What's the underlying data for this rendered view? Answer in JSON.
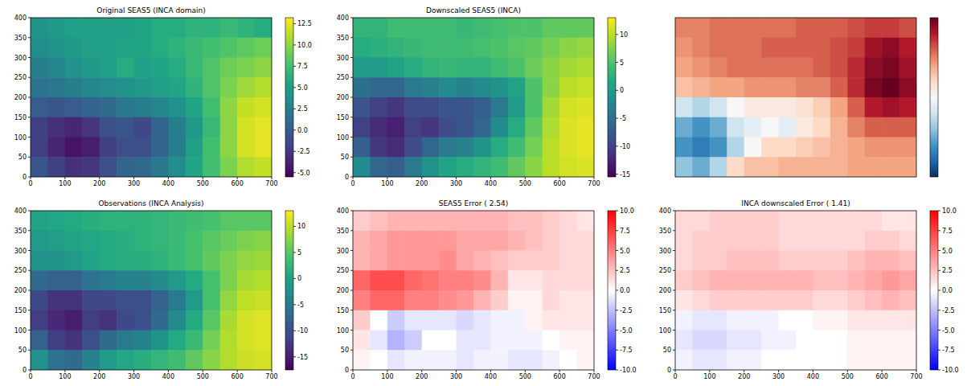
{
  "chart_data": [
    {
      "type": "heatmap",
      "title": "Original SEAS5 (INCA domain)",
      "color": "viridis",
      "x": [
        25,
        75,
        125,
        175,
        225,
        275,
        325,
        375,
        425,
        475,
        525,
        575,
        625,
        675
      ],
      "y": [
        375,
        325,
        275,
        225,
        175,
        125,
        75,
        25
      ],
      "values": [
        [
          4,
          4.5,
          5,
          5,
          5,
          5,
          5.5,
          6,
          6,
          6.5,
          6.5,
          7,
          6.5,
          6
        ],
        [
          3.5,
          4,
          4.5,
          5,
          5,
          5.5,
          5.5,
          6,
          6.5,
          7,
          7.5,
          8,
          8.5,
          9
        ],
        [
          2.5,
          3,
          4,
          4.5,
          5,
          6,
          5,
          5.5,
          6,
          7,
          8,
          9,
          9.5,
          10
        ],
        [
          1.5,
          2,
          2.5,
          3,
          3.5,
          4,
          4.5,
          5,
          5.5,
          6.5,
          8,
          9.5,
          10.5,
          11
        ],
        [
          0,
          -0.5,
          0,
          0.5,
          1,
          2,
          2.5,
          3,
          4,
          5.5,
          7.5,
          10,
          11.5,
          12
        ],
        [
          -2,
          -3,
          -3.5,
          -2.5,
          -1,
          -0.5,
          -1.5,
          0.5,
          2.5,
          4.5,
          7,
          10,
          12,
          12.5
        ],
        [
          -2,
          -3.5,
          -4.5,
          -4,
          -2,
          -1,
          -1,
          0.5,
          2.5,
          5,
          7.5,
          10,
          12,
          12.5
        ],
        [
          -0.5,
          -2,
          -3,
          -2.5,
          -1,
          0.5,
          1,
          2,
          3.5,
          5.5,
          7.5,
          9.5,
          11,
          11.5
        ]
      ],
      "xlim": [
        0,
        700
      ],
      "ylim": [
        0,
        400
      ],
      "xticks": [
        0,
        100,
        200,
        300,
        400,
        500,
        600,
        700
      ],
      "yticks": [
        0,
        50,
        100,
        150,
        200,
        250,
        300,
        350,
        400
      ],
      "colorbar": {
        "range": [
          -5.5,
          13.2
        ],
        "ticks": [
          {
            "value": -5,
            "label": "-5.0"
          },
          -2.5,
          {
            "value": 0,
            "label": "0.0"
          },
          2.5,
          {
            "value": 5,
            "label": "5.0"
          },
          7.5,
          {
            "value": 10,
            "label": "10.0"
          },
          12.5
        ]
      }
    },
    {
      "type": "heatmap",
      "title": "Downscaled SEAS5 (INCA)",
      "color": "viridis",
      "x": [
        25,
        75,
        125,
        175,
        225,
        275,
        325,
        375,
        425,
        475,
        525,
        575,
        625,
        675
      ],
      "y": [
        375,
        325,
        275,
        225,
        175,
        125,
        75,
        25
      ],
      "values": [
        [
          3,
          3,
          4,
          4,
          4,
          4,
          3.5,
          4,
          4.5,
          5,
          5,
          6,
          6,
          6
        ],
        [
          2,
          2.5,
          3,
          3.5,
          4,
          4,
          4,
          4.5,
          5,
          5.5,
          6,
          7,
          8,
          8.5
        ],
        [
          0,
          0,
          1,
          2,
          3,
          3.5,
          3,
          3,
          4,
          5,
          6.5,
          8,
          9,
          9.5
        ],
        [
          -5,
          -6,
          -6,
          -4,
          -3,
          -2,
          -3,
          -2,
          -1,
          1,
          5,
          8,
          10,
          10.5
        ],
        [
          -8,
          -10,
          -11,
          -9,
          -9,
          -8,
          -8,
          -7,
          -4,
          0,
          5,
          9,
          11,
          11.5
        ],
        [
          -10,
          -12,
          -13,
          -10,
          -11,
          -9,
          -8,
          -6,
          -2,
          2,
          6,
          9.5,
          11.5,
          12
        ],
        [
          -7,
          -11,
          -12,
          -9,
          -6,
          -4,
          -3,
          -1,
          2,
          4,
          7,
          10,
          11.5,
          12
        ],
        [
          -2,
          -6,
          -7,
          -4,
          -1,
          1,
          2,
          3,
          4,
          6,
          8,
          10,
          11,
          11.5
        ]
      ],
      "xlim": [
        0,
        700
      ],
      "ylim": [
        0,
        400
      ],
      "xticks": [
        0,
        100,
        200,
        300,
        400,
        500,
        600,
        700
      ],
      "yticks": [
        0,
        50,
        100,
        150,
        200,
        250,
        300,
        350,
        400
      ],
      "colorbar": {
        "range": [
          -15.5,
          13
        ],
        "ticks": [
          -15,
          -10,
          -5,
          0,
          5,
          10
        ]
      }
    },
    {
      "type": "heatmap",
      "color": "RdBu_r",
      "tick_labels": false,
      "x": [
        25,
        75,
        125,
        175,
        225,
        275,
        325,
        375,
        425,
        475,
        525,
        575,
        625,
        675
      ],
      "y": [
        375,
        325,
        275,
        225,
        175,
        125,
        75,
        25
      ],
      "values": [
        [
          5,
          5,
          5.5,
          5.5,
          5.5,
          5.5,
          5.5,
          6,
          6,
          6,
          6.5,
          7,
          7,
          6.5
        ],
        [
          4.5,
          5,
          5.5,
          5.5,
          5.5,
          6,
          6,
          6,
          6,
          6.5,
          7,
          8.5,
          9,
          8
        ],
        [
          4,
          4.5,
          5,
          5.5,
          5.5,
          5.5,
          5.5,
          5.5,
          6,
          6.5,
          7.5,
          9,
          9.5,
          8.5
        ],
        [
          3,
          3.5,
          4,
          4,
          4.5,
          4.5,
          4.5,
          5,
          5,
          6,
          7.5,
          9.5,
          10,
          9
        ],
        [
          -2,
          -3,
          -2,
          0,
          1,
          1,
          1,
          1.5,
          2.5,
          4,
          6,
          8,
          8.5,
          8
        ],
        [
          -5,
          -6,
          -5,
          -2,
          -1,
          0,
          -1,
          1,
          2,
          3.5,
          5,
          6,
          6,
          6
        ],
        [
          -6,
          -7,
          -6,
          -3,
          0,
          2,
          2,
          2.5,
          3,
          3.5,
          4,
          4.5,
          4.5,
          4.5
        ],
        [
          -4,
          -5,
          -3,
          2,
          3,
          3,
          3.5,
          3.5,
          3.5,
          3.5,
          4,
          4,
          4,
          4
        ]
      ],
      "xlim": [
        0,
        700
      ],
      "ylim": [
        0,
        400
      ],
      "colorbar": {
        "range": [
          -10,
          10
        ]
      }
    },
    {
      "type": "heatmap",
      "title": "Observations (INCA Analysis)",
      "color": "viridis",
      "x": [
        25,
        75,
        125,
        175,
        225,
        275,
        325,
        375,
        425,
        475,
        525,
        575,
        625,
        675
      ],
      "y": [
        375,
        325,
        275,
        225,
        175,
        125,
        75,
        25
      ],
      "values": [
        [
          0,
          0.5,
          1,
          1.5,
          2,
          2,
          2,
          2.5,
          3,
          3.5,
          4,
          5,
          5,
          5
        ],
        [
          -1,
          -0.5,
          0,
          0.5,
          1,
          1.5,
          2,
          2.5,
          3,
          4,
          5,
          6,
          7,
          7.5
        ],
        [
          -2,
          -2,
          -1,
          0,
          1,
          1.5,
          1.5,
          2,
          3,
          4,
          5.5,
          7,
          8,
          8.5
        ],
        [
          -7,
          -8,
          -8,
          -6,
          -5,
          -4,
          -4,
          -3,
          -1,
          1,
          4,
          7,
          9,
          9.5
        ],
        [
          -11,
          -13,
          -13,
          -11,
          -11,
          -10,
          -10,
          -8,
          -5,
          -1,
          4,
          8,
          10,
          10.5
        ],
        [
          -12,
          -14,
          -15,
          -12,
          -13,
          -11,
          -10,
          -7,
          -3,
          1,
          5,
          9,
          11,
          11.5
        ],
        [
          -8,
          -12,
          -13,
          -10,
          -7,
          -5,
          -4,
          -2,
          1,
          3,
          6.5,
          9.5,
          11,
          11.5
        ],
        [
          -2,
          -6,
          -7,
          -4,
          -1,
          0.5,
          1.5,
          2.5,
          3.5,
          5.5,
          7.5,
          9.5,
          10.5,
          11
        ]
      ],
      "xlim": [
        0,
        700
      ],
      "ylim": [
        0,
        400
      ],
      "xticks": [
        0,
        100,
        200,
        300,
        400,
        500,
        600,
        700
      ],
      "yticks": [
        0,
        50,
        100,
        150,
        200,
        250,
        300,
        350,
        400
      ],
      "colorbar": {
        "range": [
          -17.5,
          13
        ],
        "ticks": [
          -15,
          -10,
          -5,
          0,
          5,
          10
        ]
      }
    },
    {
      "type": "heatmap",
      "title": "SEAS5 Error ( 2.54)",
      "color": "bwr",
      "x": [
        25,
        75,
        125,
        175,
        225,
        275,
        325,
        375,
        425,
        475,
        525,
        575,
        625,
        675
      ],
      "y": [
        375,
        325,
        275,
        225,
        175,
        125,
        75,
        25
      ],
      "values": [
        [
          2,
          2.5,
          3,
          3,
          3,
          3,
          3,
          3,
          3,
          2.5,
          2.5,
          2,
          1.5,
          1
        ],
        [
          3,
          3.5,
          4,
          4,
          4,
          4,
          3.5,
          3.5,
          3.5,
          3,
          2.5,
          2,
          1.5,
          1.5
        ],
        [
          3,
          3.5,
          4,
          4,
          4,
          4.5,
          3.5,
          3,
          2.5,
          2,
          2,
          2,
          1.5,
          1.5
        ],
        [
          6,
          7,
          7,
          6,
          5.5,
          5,
          5,
          4.5,
          3,
          1,
          1,
          1.5,
          1.5,
          1.5
        ],
        [
          5,
          6,
          6,
          5,
          5,
          4.5,
          4,
          3,
          2,
          0.5,
          0.5,
          1.5,
          1,
          1
        ],
        [
          2,
          0,
          -2,
          -1,
          -1,
          -1,
          -1.5,
          -1,
          -0.5,
          -0.5,
          0.5,
          1,
          1,
          1
        ],
        [
          1,
          -1,
          -3,
          -2,
          0,
          0,
          -1,
          -1,
          -0.5,
          -0.5,
          -0.5,
          0,
          0.5,
          0.5
        ],
        [
          0.5,
          0,
          -1,
          -0.5,
          -0.5,
          -0.5,
          -1,
          -0.5,
          -0.5,
          -1,
          -1,
          -0.5,
          0,
          0.5
        ]
      ],
      "xlim": [
        0,
        700
      ],
      "ylim": [
        0,
        400
      ],
      "xticks": [
        0,
        100,
        200,
        300,
        400,
        500,
        600,
        700
      ],
      "yticks": [
        0,
        50,
        100,
        150,
        200,
        250,
        300,
        350,
        400
      ],
      "colorbar": {
        "range": [
          -10,
          10
        ],
        "ticks": [
          {
            "value": -10,
            "label": "-10.0"
          },
          -7.5,
          {
            "value": -5,
            "label": "-5.0"
          },
          -2.5,
          {
            "value": 0,
            "label": "0.0"
          },
          2.5,
          {
            "value": 5,
            "label": "5.0"
          },
          7.5,
          {
            "value": 10,
            "label": "10.0"
          }
        ]
      }
    },
    {
      "type": "heatmap",
      "title": "INCA downscaled Error ( 1.41)",
      "color": "bwr",
      "x": [
        25,
        75,
        125,
        175,
        225,
        275,
        325,
        375,
        425,
        475,
        525,
        575,
        625,
        675
      ],
      "y": [
        375,
        325,
        275,
        225,
        175,
        125,
        75,
        25
      ],
      "values": [
        [
          1.5,
          1.5,
          2,
          2,
          2,
          2,
          1.5,
          1.5,
          1.5,
          1.5,
          1.5,
          1.5,
          1,
          1
        ],
        [
          1.5,
          2,
          2,
          2,
          2,
          2,
          1.5,
          1.5,
          1.5,
          1.5,
          1.5,
          2,
          2,
          1.5
        ],
        [
          1.5,
          2,
          2,
          2.5,
          2.5,
          2.5,
          2,
          2,
          2,
          2,
          2.5,
          3,
          3,
          2.5
        ],
        [
          2,
          2.5,
          3,
          3,
          3,
          3,
          3,
          3,
          2.5,
          2.5,
          3,
          3.5,
          4,
          3.5
        ],
        [
          1,
          1.5,
          2,
          2,
          2,
          2,
          2,
          2,
          1.5,
          1.5,
          2,
          2.5,
          3,
          2.5
        ],
        [
          -0.5,
          -1,
          -1,
          -0.5,
          -0.5,
          -0.5,
          0,
          0,
          0.5,
          0.5,
          1,
          1,
          1,
          1
        ],
        [
          -1,
          -1.5,
          -1.5,
          -1,
          -1,
          -0.5,
          -0.5,
          0,
          0,
          0,
          0.5,
          0.5,
          0.5,
          0.5
        ],
        [
          -0.5,
          -1,
          -1,
          -0.5,
          -0.5,
          0,
          0,
          0,
          0,
          0,
          0.5,
          0.5,
          0.5,
          0.5
        ]
      ],
      "xlim": [
        0,
        700
      ],
      "ylim": [
        0,
        400
      ],
      "xticks": [
        0,
        100,
        200,
        300,
        400,
        500,
        600,
        700
      ],
      "yticks": [
        0,
        50,
        100,
        150,
        200,
        250,
        300,
        350,
        400
      ],
      "colorbar": {
        "range": [
          -10,
          10
        ],
        "ticks": [
          {
            "value": -10,
            "label": "-10.0"
          },
          -7.5,
          {
            "value": -5,
            "label": "-5.0"
          },
          -2.5,
          {
            "value": 0,
            "label": "0.0"
          },
          2.5,
          {
            "value": 5,
            "label": "5.0"
          },
          7.5,
          {
            "value": 10,
            "label": "10.0"
          }
        ]
      }
    }
  ]
}
